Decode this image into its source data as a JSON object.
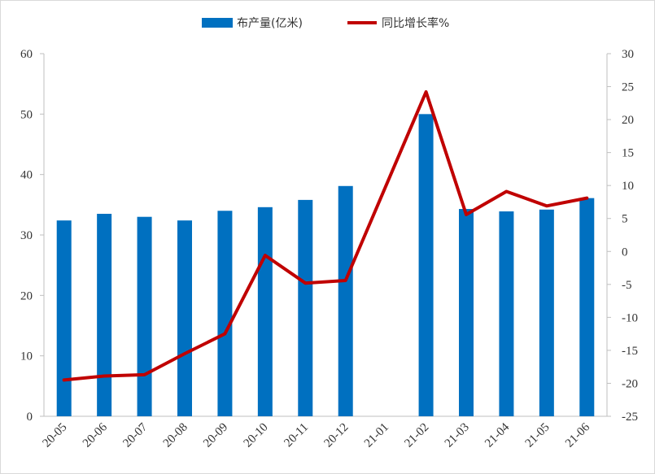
{
  "chart_data": {
    "type": "bar+line",
    "categories": [
      "20-05",
      "20-06",
      "20-07",
      "20-08",
      "20-09",
      "20-10",
      "20-11",
      "20-12",
      "21-01",
      "21-02",
      "21-03",
      "21-04",
      "21-05",
      "21-06"
    ],
    "series": [
      {
        "name": "布产量(亿米)",
        "type": "bar",
        "axis": "left",
        "color": "#0070C0",
        "values": [
          32.4,
          33.5,
          33.0,
          32.4,
          34.0,
          34.6,
          35.8,
          38.1,
          null,
          50.0,
          34.3,
          33.9,
          34.2,
          36.1
        ]
      },
      {
        "name": "同比增长率%",
        "type": "line",
        "axis": "right",
        "color": "#C00000",
        "values": [
          -19.5,
          -18.9,
          -18.7,
          -15.5,
          -12.5,
          -0.6,
          -4.8,
          -4.4,
          null,
          24.2,
          5.6,
          9.1,
          6.9,
          8.1
        ]
      }
    ],
    "left_axis": {
      "min": 0,
      "max": 60,
      "step": 10,
      "ticks": [
        "0",
        "10",
        "20",
        "30",
        "40",
        "50",
        "60"
      ]
    },
    "right_axis": {
      "min": -25,
      "max": 30,
      "step": 5,
      "ticks": [
        "-25",
        "-20",
        "-15",
        "-10",
        "-5",
        "0",
        "5",
        "10",
        "15",
        "20",
        "25",
        "30"
      ]
    },
    "legend_position": "top-center"
  }
}
